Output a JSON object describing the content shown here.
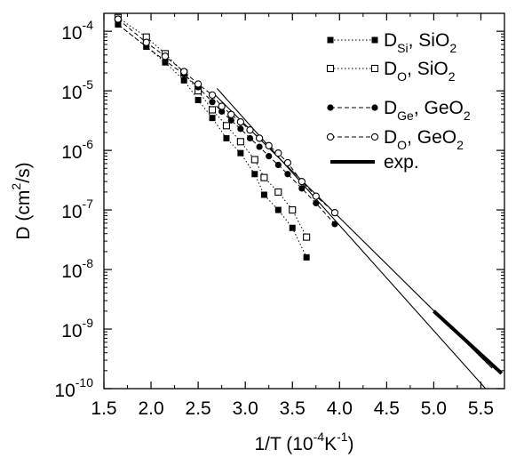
{
  "chart_data": {
    "type": "scatter",
    "xlabel": {
      "main": "1/T (10",
      "sup": "-4",
      "tail": "K",
      "sup2": "-1",
      "close": ")"
    },
    "ylabel": {
      "main": "D (cm",
      "sup": "2",
      "tail": "/s)"
    },
    "xlim": [
      1.5,
      5.75
    ],
    "ylim": [
      1e-10,
      0.0002
    ],
    "y_scale": "log",
    "x_ticks": [
      1.5,
      2.0,
      2.5,
      3.0,
      3.5,
      4.0,
      4.5,
      5.0,
      5.5
    ],
    "x_tick_labels": [
      "1.5",
      "2.0",
      "2.5",
      "3.0",
      "3.5",
      "4.0",
      "4.5",
      "5.0",
      "5.5"
    ],
    "y_tick_exponents": [
      -4,
      -5,
      -6,
      -7,
      -8,
      -9,
      -10
    ],
    "y_tick_base": "10",
    "legend_position": "top-right",
    "series": [
      {
        "name_main": "D",
        "name_sub": "Si",
        "name_tail": ", SiO",
        "name_sub2": "2",
        "marker": "filled-square",
        "line": "dotted",
        "x": [
          1.65,
          1.95,
          2.15,
          2.35,
          2.5,
          2.65,
          2.8,
          2.95,
          3.1,
          3.2,
          3.35,
          3.5,
          3.65
        ],
        "y": [
          0.00013,
          5.5e-05,
          3e-05,
          1.5e-05,
          7e-06,
          3.5e-06,
          1.6e-06,
          9e-07,
          4e-07,
          1.8e-07,
          1e-07,
          5e-08,
          1.6e-08
        ]
      },
      {
        "name_main": "D",
        "name_sub": "O",
        "name_tail": ", SiO",
        "name_sub2": "2",
        "marker": "open-square",
        "line": "dotted",
        "x": [
          1.65,
          1.95,
          2.15,
          2.35,
          2.5,
          2.65,
          2.8,
          2.95,
          3.1,
          3.2,
          3.35,
          3.5,
          3.65
        ],
        "y": [
          0.00017,
          8e-05,
          4.2e-05,
          2e-05,
          1e-05,
          4.8e-06,
          2.6e-06,
          1.4e-06,
          7e-07,
          3.5e-07,
          2e-07,
          1e-07,
          3.5e-08
        ]
      },
      {
        "name_main": "D",
        "name_sub": "Ge",
        "name_tail": ", GeO",
        "name_sub2": "2",
        "marker": "filled-circle",
        "line": "dashed",
        "x": [
          1.65,
          1.95,
          2.15,
          2.35,
          2.5,
          2.65,
          2.75,
          2.85,
          2.95,
          3.05,
          3.15,
          3.25,
          3.35,
          3.45,
          3.6,
          3.75,
          3.95
        ],
        "y": [
          0.00013,
          5.5e-05,
          3.2e-05,
          1.9e-05,
          1.15e-05,
          6.5e-06,
          4.5e-06,
          3.2e-06,
          2.3e-06,
          1.6e-06,
          1.15e-06,
          8e-07,
          5.7e-07,
          4e-07,
          2.3e-07,
          1.3e-07,
          5.8e-08
        ]
      },
      {
        "name_main": "D",
        "name_sub": "O",
        "name_tail": ", GeO",
        "name_sub2": "2",
        "marker": "open-circle",
        "line": "dashed",
        "x": [
          1.65,
          1.95,
          2.15,
          2.35,
          2.5,
          2.65,
          2.75,
          2.85,
          2.95,
          3.05,
          3.15,
          3.25,
          3.35,
          3.45,
          3.6,
          3.75,
          3.95
        ],
        "y": [
          0.00016,
          6.5e-05,
          3.8e-05,
          2.1e-05,
          1.3e-05,
          8.5e-06,
          5.5e-06,
          4e-06,
          3e-06,
          2.2e-06,
          1.6e-06,
          1.2e-06,
          9e-07,
          6.2e-07,
          3e-07,
          1.7e-07,
          9e-08
        ]
      },
      {
        "name_main": "exp.",
        "marker": "none",
        "line": "thick-solid",
        "x": [
          5.0,
          5.72
        ],
        "y": [
          2e-09,
          1.8e-10
        ]
      }
    ],
    "fit_lines": [
      {
        "x": [
          2.7,
          5.55
        ],
        "y": [
          1.1e-05,
          1e-10
        ]
      },
      {
        "x": [
          2.68,
          5.62
        ],
        "y": [
          8.5e-06,
          2.2e-10
        ]
      }
    ]
  }
}
